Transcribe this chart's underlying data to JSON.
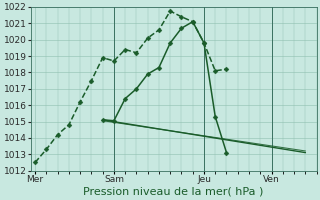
{
  "background_color": "#c8e8e0",
  "grid_color": "#90c0b0",
  "line_color_dark": "#1a5c2a",
  "line_color_mid": "#2a7040",
  "vline_color": "#3a7060",
  "title": "Pression niveau de la mer( hPa )",
  "xtick_labels": [
    "Mer",
    "Sam",
    "Jeu",
    "Ven"
  ],
  "xtick_pos": [
    0,
    3.5,
    7.5,
    10.5
  ],
  "vlines": [
    3.5,
    7.5,
    10.5
  ],
  "xlim": [
    -0.2,
    12.5
  ],
  "ylim": [
    1012,
    1022
  ],
  "yticks": [
    1012,
    1013,
    1014,
    1015,
    1016,
    1017,
    1018,
    1019,
    1020,
    1021,
    1022
  ],
  "line1_x": [
    0,
    0.5,
    1.0,
    1.5,
    2.0,
    2.5,
    3.0,
    3.5,
    4.0,
    4.5,
    5.0,
    5.5,
    6.0,
    6.5,
    7.0,
    7.5,
    8.0,
    8.5
  ],
  "line1_y": [
    1012.5,
    1013.3,
    1014.2,
    1014.8,
    1016.2,
    1017.5,
    1018.9,
    1018.7,
    1019.4,
    1019.2,
    1020.1,
    1020.6,
    1021.75,
    1021.4,
    1021.1,
    1019.8,
    1018.1,
    1018.2
  ],
  "line2_x": [
    3.0,
    3.5,
    4.0,
    4.5,
    5.0,
    5.5,
    6.0,
    6.5,
    7.0,
    7.5,
    8.0,
    8.5
  ],
  "line2_y": [
    1015.1,
    1015.05,
    1016.4,
    1017.0,
    1017.9,
    1018.3,
    1019.8,
    1020.7,
    1021.1,
    1019.8,
    1015.3,
    1013.1
  ],
  "line3_x": [
    3.0,
    12.0
  ],
  "line3_y": [
    1015.1,
    1013.1
  ],
  "line4_x": [
    3.0,
    12.0
  ],
  "line4_y": [
    1015.05,
    1013.2
  ],
  "title_fontsize": 8,
  "tick_fontsize": 6.5
}
